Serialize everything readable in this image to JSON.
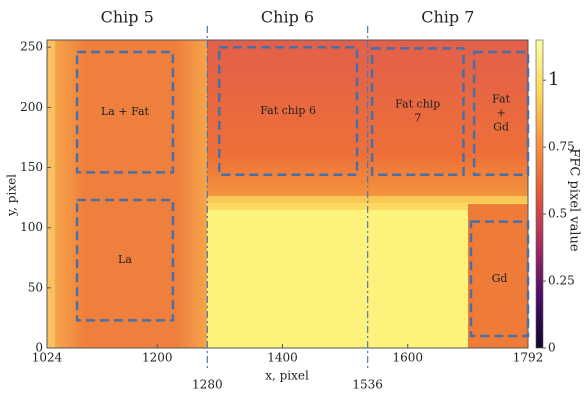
{
  "chart_data": {
    "type": "heatmap",
    "xlabel": "x, pixel",
    "ylabel": "y, pixel",
    "xlim": [
      1024,
      1792
    ],
    "ylim": [
      0,
      256
    ],
    "xticks": [
      1024,
      1200,
      1400,
      1600,
      1792
    ],
    "yticks": [
      0,
      50,
      100,
      150,
      200,
      250
    ],
    "boundaries": [
      1280,
      1536
    ],
    "boundary_color": "#4a78b8",
    "chips": [
      "Chip 5",
      "Chip 6",
      "Chip 7"
    ],
    "colorbar": {
      "label": "FFC pixel value",
      "lim": [
        0,
        1.15
      ],
      "ticks": [
        0,
        0.25,
        0.5,
        0.75,
        1
      ],
      "colors": [
        "#0d0829",
        "#4a0c6b",
        "#a52c60",
        "#e05a3a",
        "#f89540",
        "#fcd85a",
        "#fcffa4"
      ]
    },
    "region_color": "#4a6fa5",
    "regions": [
      {
        "lines": [
          "La + Fat"
        ],
        "x": [
          1072,
          1225
        ],
        "y": [
          146,
          246
        ]
      },
      {
        "lines": [
          "La"
        ],
        "x": [
          1072,
          1225
        ],
        "y": [
          23,
          123
        ]
      },
      {
        "lines": [
          "Fat chip 6"
        ],
        "x": [
          1299,
          1519
        ],
        "y": [
          144,
          250
        ]
      },
      {
        "lines": [
          "Fat chip",
          "7"
        ],
        "x": [
          1543,
          1689
        ],
        "y": [
          144,
          249
        ]
      },
      {
        "lines": [
          "Fat",
          "+",
          "Gd"
        ],
        "x": [
          1706,
          1792
        ],
        "y": [
          144,
          246
        ]
      },
      {
        "lines": [
          "Gd"
        ],
        "x": [
          1701,
          1792
        ],
        "y": [
          10,
          105
        ]
      }
    ]
  }
}
